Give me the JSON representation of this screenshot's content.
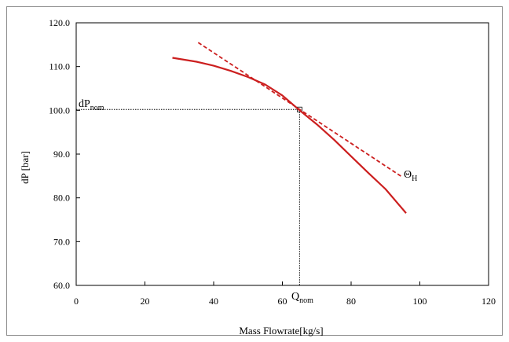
{
  "chart_data": {
    "type": "line",
    "xlabel": "Mass Flowrate[kg/s]",
    "ylabel": "dP [bar]",
    "xlim": [
      0,
      120
    ],
    "ylim": [
      60,
      120
    ],
    "x_ticks": [
      "0",
      "20",
      "40",
      "60",
      "80",
      "100",
      "120"
    ],
    "y_ticks": [
      "60.0",
      "70.0",
      "80.0",
      "90.0",
      "100.0",
      "110.0",
      "120.0"
    ],
    "grid": false,
    "legend": "none",
    "series": [
      {
        "style": "solid",
        "color": "#cc1f1f",
        "x": [
          28,
          35,
          40,
          45,
          50,
          55,
          60,
          65,
          70,
          75,
          80,
          85,
          90,
          96
        ],
        "y": [
          112.0,
          111.1,
          110.2,
          109.0,
          107.6,
          105.9,
          103.4,
          100.0,
          96.8,
          93.3,
          89.5,
          85.7,
          82.0,
          76.5
        ]
      },
      {
        "style": "dashed",
        "color": "#cc1f1f",
        "x": [
          35.5,
          95
        ],
        "y": [
          115.5,
          84.7
        ]
      }
    ],
    "reference_lines": {
      "point": {
        "x": 65,
        "y": 100.2
      },
      "horizontal_from_x": 0,
      "vertical_to_y": 60
    },
    "annotations": [
      {
        "text": "dP",
        "sub": "nom",
        "at": "near y-axis above dotted line"
      },
      {
        "text": "Q",
        "sub": "nom",
        "at": "below x = 65"
      },
      {
        "text": "Θ",
        "sub": "H",
        "at": "end of dashed tangent"
      }
    ]
  }
}
